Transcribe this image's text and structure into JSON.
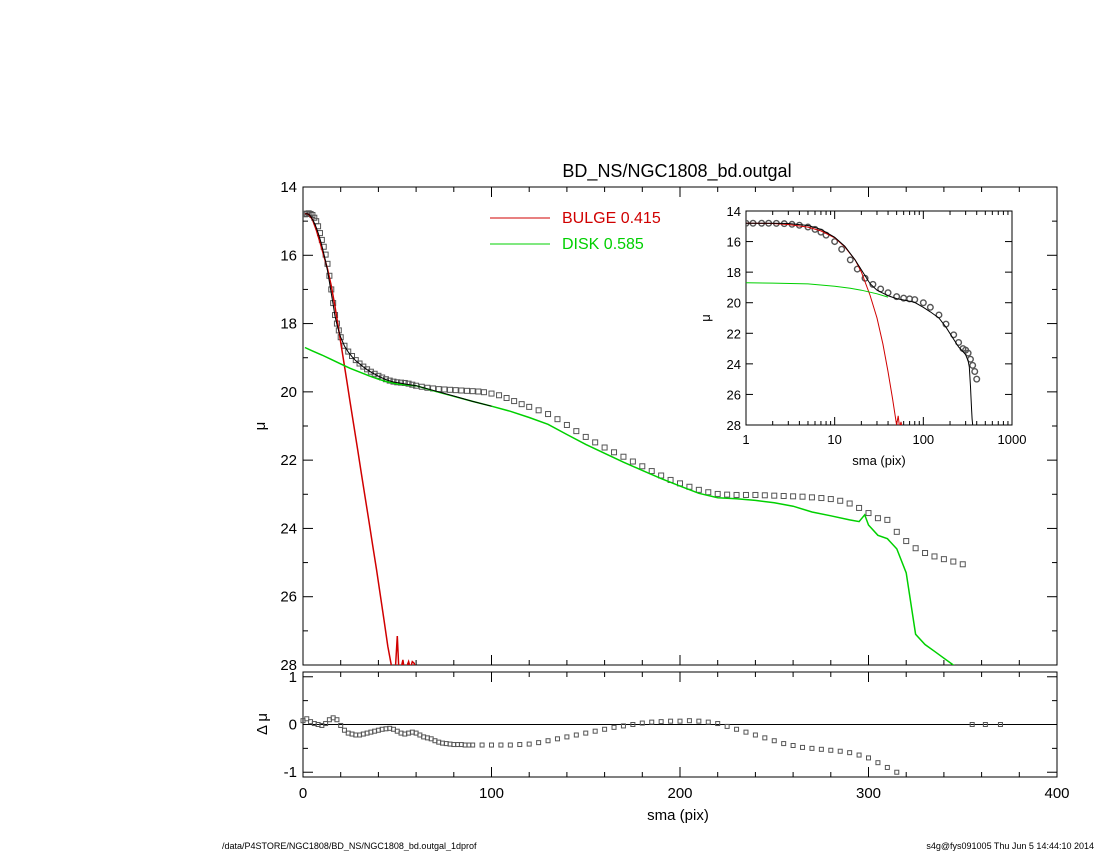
{
  "footer": {
    "left": "/data/P4STORE/NGC1808/BD_NS/NGC1808_bd.outgal_1dprof",
    "right": "s4g@fys091005  Thu Jun  5 14:44:10 2014"
  },
  "chart_data": [
    {
      "type": "scatter",
      "title": "BD_NS/NGC1808_bd.outgal",
      "xlabel": "",
      "ylabel": "μ",
      "xlim": [
        0,
        400
      ],
      "ylim": [
        28,
        14
      ],
      "y_inverted": true,
      "yticks": [
        "14",
        "16",
        "18",
        "20",
        "22",
        "24",
        "26",
        "28"
      ],
      "legend": {
        "placement": "top-center",
        "entries": [
          {
            "label": "BULGE  0.415",
            "color": "#d00000"
          },
          {
            "label": "DISK  0.585",
            "color": "#00d000"
          }
        ]
      },
      "series": [
        {
          "name": "observed",
          "style": "squares",
          "color": "#555555",
          "x": [
            1,
            2,
            3,
            4,
            5,
            6,
            7,
            8,
            9,
            10,
            11,
            12,
            13,
            14,
            15,
            16,
            17,
            18,
            19,
            20,
            22,
            24,
            26,
            28,
            30,
            32,
            34,
            36,
            38,
            40,
            42,
            44,
            46,
            48,
            50,
            52,
            54,
            56,
            58,
            60,
            63,
            66,
            69,
            72,
            75,
            78,
            81,
            84,
            87,
            90,
            93,
            96,
            100,
            104,
            108,
            112,
            116,
            120,
            125,
            130,
            135,
            140,
            145,
            150,
            155,
            160,
            165,
            170,
            175,
            180,
            185,
            190,
            195,
            200,
            205,
            210,
            215,
            220,
            225,
            230,
            235,
            240,
            245,
            250,
            255,
            260,
            265,
            270,
            275,
            280,
            285,
            290,
            295,
            300,
            305,
            310,
            315,
            320,
            325,
            330,
            335,
            340,
            345,
            350
          ],
          "y": [
            14.8,
            14.78,
            14.77,
            14.79,
            14.82,
            14.9,
            15.0,
            15.15,
            15.35,
            15.55,
            15.75,
            15.98,
            16.25,
            16.6,
            17.0,
            17.4,
            17.75,
            18.0,
            18.2,
            18.4,
            18.65,
            18.82,
            18.95,
            19.07,
            19.17,
            19.26,
            19.34,
            19.41,
            19.47,
            19.53,
            19.58,
            19.63,
            19.67,
            19.7,
            19.72,
            19.73,
            19.74,
            19.76,
            19.79,
            19.82,
            19.85,
            19.88,
            19.9,
            19.92,
            19.93,
            19.94,
            19.95,
            19.96,
            19.97,
            19.98,
            19.99,
            20.01,
            20.05,
            20.1,
            20.18,
            20.27,
            20.36,
            20.44,
            20.54,
            20.65,
            20.8,
            20.97,
            21.15,
            21.32,
            21.48,
            21.63,
            21.77,
            21.9,
            22.04,
            22.18,
            22.32,
            22.45,
            22.58,
            22.68,
            22.78,
            22.87,
            22.94,
            22.99,
            23.01,
            23.02,
            23.02,
            23.02,
            23.03,
            23.04,
            23.05,
            23.06,
            23.07,
            23.09,
            23.11,
            23.14,
            23.19,
            23.27,
            23.4,
            23.55,
            23.7,
            23.75,
            24.1,
            24.37,
            24.58,
            24.72,
            24.82,
            24.9,
            24.97,
            25.05
          ]
        },
        {
          "name": "bulge",
          "style": "line",
          "color": "#d00000",
          "x": [
            1,
            3,
            5,
            7,
            9,
            11,
            13,
            15,
            17,
            19,
            21,
            23,
            25,
            27,
            29,
            31,
            33,
            35,
            37,
            39,
            41,
            43,
            45,
            47,
            48,
            49,
            50,
            51,
            52,
            53,
            54,
            55,
            56,
            57,
            58,
            59,
            60
          ],
          "y": [
            14.78,
            14.8,
            14.95,
            15.25,
            15.62,
            16.0,
            16.4,
            16.9,
            17.5,
            18.2,
            18.9,
            19.6,
            20.3,
            21.0,
            21.7,
            22.4,
            23.1,
            23.8,
            24.5,
            25.2,
            25.95,
            26.7,
            27.45,
            28.05,
            28.3,
            28.1,
            27.15,
            28.3,
            28.1,
            27.85,
            28.25,
            28.05,
            27.9,
            28.1,
            27.9,
            27.95,
            28.2
          ]
        },
        {
          "name": "disk",
          "style": "line",
          "color": "#00d000",
          "x": [
            1,
            5,
            10,
            15,
            20,
            25,
            30,
            35,
            40,
            45,
            50,
            55,
            60,
            70,
            80,
            90,
            100,
            110,
            120,
            130,
            140,
            150,
            160,
            170,
            180,
            190,
            200,
            210,
            220,
            230,
            240,
            250,
            260,
            270,
            280,
            290,
            295,
            298,
            300,
            305,
            310,
            315,
            320,
            325,
            330,
            335,
            340,
            345,
            350
          ],
          "y": [
            18.7,
            18.8,
            18.92,
            19.05,
            19.18,
            19.31,
            19.42,
            19.53,
            19.63,
            19.71,
            19.77,
            19.8,
            19.82,
            19.98,
            20.13,
            20.28,
            20.42,
            20.57,
            20.75,
            20.95,
            21.25,
            21.54,
            21.8,
            22.06,
            22.3,
            22.54,
            22.76,
            22.97,
            23.1,
            23.13,
            23.18,
            23.25,
            23.35,
            23.52,
            23.63,
            23.75,
            23.8,
            23.6,
            23.9,
            24.2,
            24.3,
            24.6,
            25.3,
            27.1,
            27.4,
            27.6,
            27.8,
            28.0,
            28.2
          ]
        },
        {
          "name": "model",
          "style": "line",
          "color": "#000000",
          "x": [
            1,
            2,
            3,
            4,
            5,
            6,
            7,
            8,
            9,
            10,
            11,
            12,
            13,
            14,
            15,
            16,
            17,
            18,
            19,
            20,
            22,
            24,
            26,
            28,
            30,
            32,
            34,
            36,
            38,
            40,
            42,
            44,
            46,
            48,
            50,
            55,
            60,
            70,
            80,
            90,
            100
          ],
          "y": [
            14.8,
            14.78,
            14.8,
            14.85,
            14.95,
            15.05,
            15.18,
            15.34,
            15.52,
            15.72,
            15.94,
            16.18,
            16.45,
            16.78,
            17.12,
            17.45,
            17.78,
            18.02,
            18.22,
            18.4,
            18.66,
            18.83,
            18.97,
            19.09,
            19.18,
            19.27,
            19.35,
            19.42,
            19.48,
            19.54,
            19.59,
            19.64,
            19.68,
            19.71,
            19.73,
            19.78,
            19.82,
            19.97,
            20.12,
            20.28,
            20.42
          ]
        }
      ]
    },
    {
      "type": "scatter",
      "title": "",
      "xlabel": "sma (pix)",
      "ylabel": "Δ μ",
      "xlim": [
        0,
        400
      ],
      "ylim": [
        -1.1,
        1.1
      ],
      "xticks": [
        "0",
        "100",
        "200",
        "300",
        "400"
      ],
      "yticks": [
        "1",
        "0",
        "-1"
      ],
      "series": [
        {
          "name": "residual",
          "style": "squares",
          "color": "#555555",
          "x": [
            0,
            2,
            4,
            6,
            8,
            10,
            12,
            14,
            16,
            18,
            20,
            22,
            24,
            26,
            28,
            30,
            32,
            34,
            36,
            38,
            40,
            42,
            44,
            46,
            48,
            50,
            52,
            54,
            56,
            58,
            60,
            62,
            64,
            66,
            68,
            70,
            72,
            74,
            76,
            78,
            80,
            82,
            84,
            86,
            88,
            90,
            95,
            100,
            105,
            110,
            115,
            120,
            125,
            130,
            135,
            140,
            145,
            150,
            155,
            160,
            165,
            170,
            175,
            180,
            185,
            190,
            195,
            200,
            205,
            210,
            215,
            220,
            225,
            230,
            235,
            240,
            245,
            250,
            255,
            260,
            265,
            270,
            275,
            280,
            285,
            290,
            295,
            300,
            305,
            310,
            315,
            355,
            362,
            370
          ],
          "y": [
            0.08,
            0.12,
            0.06,
            0.02,
            0.0,
            -0.02,
            0.02,
            0.1,
            0.14,
            0.1,
            -0.02,
            -0.12,
            -0.18,
            -0.2,
            -0.22,
            -0.22,
            -0.2,
            -0.18,
            -0.16,
            -0.14,
            -0.12,
            -0.1,
            -0.09,
            -0.08,
            -0.1,
            -0.14,
            -0.18,
            -0.2,
            -0.18,
            -0.16,
            -0.18,
            -0.22,
            -0.26,
            -0.28,
            -0.3,
            -0.34,
            -0.37,
            -0.39,
            -0.4,
            -0.41,
            -0.42,
            -0.42,
            -0.42,
            -0.43,
            -0.43,
            -0.43,
            -0.43,
            -0.43,
            -0.43,
            -0.43,
            -0.42,
            -0.41,
            -0.38,
            -0.34,
            -0.3,
            -0.26,
            -0.22,
            -0.18,
            -0.14,
            -0.1,
            -0.06,
            -0.03,
            0.0,
            0.03,
            0.05,
            0.06,
            0.07,
            0.07,
            0.08,
            0.07,
            0.05,
            0.02,
            -0.04,
            -0.1,
            -0.16,
            -0.22,
            -0.28,
            -0.34,
            -0.4,
            -0.44,
            -0.48,
            -0.5,
            -0.52,
            -0.54,
            -0.56,
            -0.59,
            -0.64,
            -0.7,
            -0.8,
            -0.9,
            -1.0,
            0.0,
            0.0,
            0.0
          ]
        }
      ]
    },
    {
      "type": "scatter",
      "title": "",
      "xlabel": "sma (pix)",
      "ylabel": "μ",
      "xlim": [
        1,
        1000
      ],
      "x_scale": "log",
      "ylim": [
        28,
        14
      ],
      "y_inverted": true,
      "xticks": [
        "1",
        "10",
        "100",
        "1000"
      ],
      "yticks": [
        "14",
        "16",
        "18",
        "20",
        "22",
        "24",
        "26",
        "28"
      ],
      "series": [
        {
          "name": "observed",
          "style": "circles",
          "color": "#555555",
          "x": [
            1,
            1.2,
            1.5,
            1.8,
            2.2,
            2.7,
            3.3,
            4,
            5,
            6,
            7,
            8,
            10,
            12,
            15,
            18,
            22,
            27,
            33,
            40,
            50,
            60,
            70,
            80,
            100,
            120,
            150,
            180,
            220,
            250,
            280,
            300,
            320,
            340,
            360,
            380,
            400
          ],
          "y": [
            14.8,
            14.8,
            14.8,
            14.8,
            14.81,
            14.83,
            14.87,
            14.93,
            15.05,
            15.2,
            15.38,
            15.58,
            16.0,
            16.5,
            17.2,
            17.8,
            18.4,
            18.8,
            19.1,
            19.35,
            19.6,
            19.7,
            19.75,
            19.8,
            20.0,
            20.3,
            20.8,
            21.4,
            22.1,
            22.6,
            23.0,
            23.1,
            23.3,
            23.7,
            24.1,
            24.5,
            25.0
          ]
        },
        {
          "name": "bulge",
          "style": "line",
          "color": "#d00000",
          "x": [
            1,
            2,
            3,
            5,
            7,
            10,
            13,
            17,
            20,
            25,
            30,
            35,
            40,
            45,
            50,
            52,
            54,
            56,
            58,
            60
          ],
          "y": [
            14.8,
            14.82,
            14.88,
            15.05,
            15.3,
            15.75,
            16.35,
            17.2,
            18.0,
            19.5,
            21.0,
            22.7,
            24.5,
            26.3,
            28.0,
            27.4,
            28.2,
            27.8,
            28.3,
            28.4
          ]
        },
        {
          "name": "disk",
          "style": "line",
          "color": "#00d000",
          "x": [
            1,
            2,
            5,
            10,
            15,
            20,
            25,
            30,
            40
          ],
          "y": [
            18.7,
            18.72,
            18.77,
            18.92,
            19.05,
            19.18,
            19.31,
            19.42,
            19.63
          ]
        },
        {
          "name": "model",
          "style": "line",
          "color": "#000000",
          "x": [
            1,
            2,
            3,
            5,
            7,
            10,
            13,
            17,
            20,
            25,
            30,
            40,
            50,
            60,
            70,
            80,
            100,
            120,
            150,
            180,
            220,
            250,
            280,
            300,
            320,
            330,
            340,
            345,
            350,
            355,
            360
          ],
          "y": [
            14.8,
            14.8,
            14.82,
            14.95,
            15.2,
            15.72,
            16.3,
            17.2,
            17.85,
            18.75,
            19.18,
            19.54,
            19.73,
            19.82,
            19.9,
            19.98,
            20.3,
            20.6,
            21.0,
            21.6,
            22.4,
            22.9,
            23.2,
            23.4,
            23.8,
            24.2,
            25.5,
            26.2,
            27.0,
            27.6,
            28.0
          ]
        }
      ]
    }
  ]
}
